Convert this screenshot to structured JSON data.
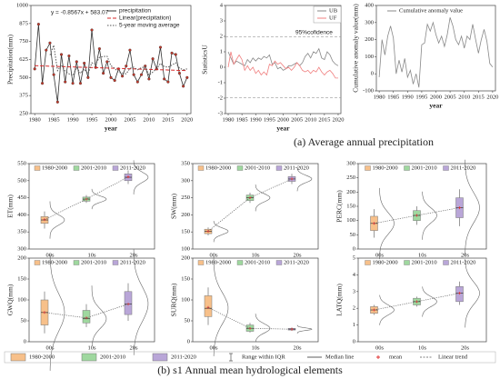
{
  "chart_data": [
    {
      "type": "line",
      "x_label": "year",
      "y_label": "Precipitation(mm)",
      "annotation": "y = -0.8567x + 583.07",
      "legend": "upper right",
      "x": [
        1980,
        1981,
        1982,
        1983,
        1984,
        1985,
        1986,
        1987,
        1988,
        1989,
        1990,
        1991,
        1992,
        1993,
        1994,
        1995,
        1996,
        1997,
        1998,
        1999,
        2000,
        2001,
        2002,
        2003,
        2004,
        2005,
        2006,
        2007,
        2008,
        2009,
        2010,
        2011,
        2012,
        2013,
        2014,
        2015,
        2016,
        2017,
        2018,
        2019,
        2020
      ],
      "xlim": [
        1979,
        2021
      ],
      "xticks": [
        1980,
        1985,
        1990,
        1995,
        2000,
        2005,
        2010,
        2015,
        2020
      ],
      "ylim": [
        250,
        1000
      ],
      "yticks": [
        250,
        375,
        500,
        625,
        750,
        875,
        1000
      ],
      "series": [
        {
          "name": "precipitation",
          "color": "#333333",
          "marker": true,
          "style": "solid",
          "values": [
            560,
            870,
            460,
            690,
            740,
            520,
            330,
            660,
            470,
            650,
            460,
            610,
            460,
            600,
            500,
            830,
            570,
            700,
            530,
            610,
            500,
            480,
            560,
            510,
            580,
            690,
            520,
            470,
            520,
            580,
            490,
            630,
            560,
            710,
            490,
            470,
            670,
            660,
            530,
            440,
            500
          ]
        },
        {
          "name": "Linear(precipitation)",
          "color": "#d62728",
          "style": "dashed",
          "x": [
            1980,
            2020
          ],
          "values": [
            582.2,
            547.9
          ]
        },
        {
          "name": "5-year moving average",
          "color": "#555555",
          "style": "dotted",
          "values": [
            null,
            null,
            null,
            null,
            656,
            724,
            548,
            588,
            544,
            526,
            514,
            570,
            530,
            558,
            526,
            602,
            594,
            640,
            646,
            648,
            582,
            564,
            536,
            532,
            526,
            564,
            572,
            554,
            568,
            576,
            516,
            538,
            560,
            598,
            576,
            572,
            586,
            602,
            566,
            554,
            560
          ]
        }
      ]
    },
    {
      "type": "line",
      "x_label": "year",
      "y_label": "StatisticsU",
      "annotation": "95%cofidence",
      "legend": "upper right",
      "x": [
        1980,
        1981,
        1982,
        1983,
        1984,
        1985,
        1986,
        1987,
        1988,
        1989,
        1990,
        1991,
        1992,
        1993,
        1994,
        1995,
        1996,
        1997,
        1998,
        1999,
        2000,
        2001,
        2002,
        2003,
        2004,
        2005,
        2006,
        2007,
        2008,
        2009,
        2010,
        2011,
        2012,
        2013,
        2014,
        2015,
        2016,
        2017,
        2018,
        2019,
        2020
      ],
      "xlim": [
        1979,
        2021
      ],
      "xticks": [
        1980,
        1985,
        1990,
        1995,
        2000,
        2005,
        2010,
        2015,
        2020
      ],
      "ylim": [
        -3,
        4
      ],
      "yticks": [
        -3,
        -2,
        -1,
        0,
        1,
        2,
        3,
        4
      ],
      "hlines": [
        1.96,
        -1.96
      ],
      "series": [
        {
          "name": "UB",
          "color": "#888888",
          "style": "solid",
          "values": [
            1,
            0.6,
            0.2,
            0.4,
            0.3,
            0.2,
            0.1,
            0.5,
            0.3,
            0.6,
            0.4,
            0.6,
            0.5,
            0.7,
            0.6,
            0.8,
            0.2,
            0.3,
            -0.1,
            0,
            -0.2,
            -0.1,
            0.1,
            0.1,
            0.2,
            0.3,
            0.1,
            0.3,
            0.7,
            0.9,
            0.6,
            1,
            0.9,
            1.2,
            0.6,
            0.5,
            1,
            0.8,
            0.4,
            0.2,
            0.1
          ]
        },
        {
          "name": "UF",
          "color": "#f08080",
          "style": "solid",
          "values": [
            0,
            1,
            0.2,
            0.5,
            0.8,
            0.5,
            -0.2,
            0.1,
            -0.2,
            0,
            -0.4,
            -0.2,
            -0.5,
            -0.3,
            -0.5,
            0.2,
            0.1,
            0.4,
            0.2,
            0.3,
            0.1,
            -0.1,
            0,
            -0.2,
            0,
            0.3,
            0.1,
            -0.2,
            -0.3,
            -0.2,
            -0.4,
            -0.2,
            -0.3,
            0,
            -0.3,
            -0.5,
            -0.3,
            -0.2,
            -0.4,
            -0.7,
            -0.7
          ]
        }
      ]
    },
    {
      "type": "line",
      "x_label": "year",
      "y_label": "Cumulative anomaly value(mm)",
      "legend": "upper right",
      "x": [
        1980,
        1981,
        1982,
        1983,
        1984,
        1985,
        1986,
        1987,
        1988,
        1989,
        1990,
        1991,
        1992,
        1993,
        1994,
        1995,
        1996,
        1997,
        1998,
        1999,
        2000,
        2001,
        2002,
        2003,
        2004,
        2005,
        2006,
        2007,
        2008,
        2009,
        2010,
        2011,
        2012,
        2013,
        2014,
        2015,
        2016,
        2017,
        2018,
        2019,
        2020
      ],
      "xlim": [
        1979,
        2021
      ],
      "xticks": [
        1980,
        1985,
        1990,
        1995,
        2000,
        2005,
        2010,
        2015,
        2020
      ],
      "ylim": [
        -100,
        400
      ],
      "yticks": [
        -100,
        0,
        100,
        200,
        300,
        400
      ],
      "series": [
        {
          "name": "Cumulative anomaly value",
          "color": "#888888",
          "style": "solid",
          "values": [
            -20,
            200,
            110,
            220,
            280,
            210,
            0,
            80,
            10,
            90,
            -20,
            20,
            -60,
            0,
            -80,
            170,
            180,
            290,
            250,
            300,
            230,
            180,
            220,
            160,
            230,
            330,
            280,
            200,
            170,
            220,
            150,
            220,
            200,
            290,
            200,
            120,
            200,
            260,
            190,
            60,
            40
          ]
        }
      ]
    },
    {
      "type": "box",
      "y_label": "ET(mm)",
      "categories": [
        "00s",
        "10s",
        "20s"
      ],
      "ylim": [
        300,
        550
      ],
      "yticks": [
        300,
        350,
        400,
        450,
        500,
        550
      ],
      "series": [
        {
          "name": "1980-2000",
          "color": "#f7c08a",
          "box": {
            "low": 360,
            "q1": 375,
            "median": 385,
            "q3": 395,
            "high": 410,
            "mean": 386
          }
        },
        {
          "name": "2001-2010",
          "color": "#9fd89f",
          "box": {
            "low": 435,
            "q1": 440,
            "median": 446,
            "q3": 452,
            "high": 458,
            "mean": 446
          }
        },
        {
          "name": "2011-2020",
          "color": "#b9a6d8",
          "box": {
            "low": 490,
            "q1": 500,
            "median": 510,
            "q3": 520,
            "high": 530,
            "mean": 511
          }
        }
      ]
    },
    {
      "type": "box",
      "y_label": "SW(mm)",
      "categories": [
        "00s",
        "10s",
        "20s"
      ],
      "ylim": [
        100,
        350
      ],
      "yticks": [
        100,
        150,
        200,
        250,
        300,
        350
      ],
      "series": [
        {
          "name": "1980-2000",
          "color": "#f7c08a",
          "box": {
            "low": 140,
            "q1": 145,
            "median": 152,
            "q3": 158,
            "high": 163,
            "mean": 152
          }
        },
        {
          "name": "2001-2010",
          "color": "#9fd89f",
          "box": {
            "low": 235,
            "q1": 242,
            "median": 250,
            "q3": 258,
            "high": 265,
            "mean": 250
          }
        },
        {
          "name": "2011-2020",
          "color": "#b9a6d8",
          "box": {
            "low": 290,
            "q1": 298,
            "median": 305,
            "q3": 312,
            "high": 320,
            "mean": 305
          }
        }
      ]
    },
    {
      "type": "box",
      "y_label": "PERC(mm)",
      "categories": [
        "00s",
        "10s",
        "20s"
      ],
      "ylim": [
        0,
        300
      ],
      "yticks": [
        0,
        50,
        100,
        150,
        200,
        250,
        300
      ],
      "series": [
        {
          "name": "1980-2000",
          "color": "#f7c08a",
          "box": {
            "low": 40,
            "q1": 65,
            "median": 90,
            "q3": 115,
            "high": 140,
            "mean": 90
          }
        },
        {
          "name": "2001-2010",
          "color": "#9fd89f",
          "box": {
            "low": 85,
            "q1": 100,
            "median": 118,
            "q3": 135,
            "high": 150,
            "mean": 118
          }
        },
        {
          "name": "2011-2020",
          "color": "#b9a6d8",
          "box": {
            "low": 80,
            "q1": 110,
            "median": 145,
            "q3": 180,
            "high": 210,
            "mean": 145
          }
        }
      ]
    },
    {
      "type": "box",
      "y_label": "GWQ(mm)",
      "categories": [
        "00s",
        "10s",
        "20s"
      ],
      "ylim": [
        0,
        200
      ],
      "yticks": [
        0,
        50,
        100,
        150,
        200
      ],
      "series": [
        {
          "name": "1980-2000",
          "color": "#f7c08a",
          "box": {
            "low": 20,
            "q1": 40,
            "median": 70,
            "q3": 100,
            "high": 120,
            "mean": 70
          }
        },
        {
          "name": "2001-2010",
          "color": "#9fd89f",
          "box": {
            "low": 35,
            "q1": 45,
            "median": 55,
            "q3": 75,
            "high": 90,
            "mean": 57
          }
        },
        {
          "name": "2011-2020",
          "color": "#b9a6d8",
          "box": {
            "low": 50,
            "q1": 65,
            "median": 90,
            "q3": 120,
            "high": 140,
            "mean": 90
          }
        }
      ]
    },
    {
      "type": "box",
      "y_label": "SURQ(mm)",
      "categories": [
        "00s",
        "10s",
        "20s"
      ],
      "ylim": [
        0,
        200
      ],
      "yticks": [
        0,
        50,
        100,
        150,
        200
      ],
      "series": [
        {
          "name": "1980-2000",
          "color": "#f7c08a",
          "box": {
            "low": 40,
            "q1": 60,
            "median": 80,
            "q3": 110,
            "high": 130,
            "mean": 82
          }
        },
        {
          "name": "2001-2010",
          "color": "#9fd89f",
          "box": {
            "low": 22,
            "q1": 25,
            "median": 32,
            "q3": 40,
            "high": 45,
            "mean": 32
          }
        },
        {
          "name": "2011-2020",
          "color": "#b9a6d8",
          "box": {
            "low": 26,
            "q1": 28,
            "median": 30,
            "q3": 32,
            "high": 34,
            "mean": 30
          }
        }
      ]
    },
    {
      "type": "box",
      "y_label": "LATQ(mm)",
      "categories": [
        "00s",
        "10s",
        "20s"
      ],
      "ylim": [
        0,
        5
      ],
      "yticks": [
        0,
        1,
        2,
        3,
        4,
        5
      ],
      "series": [
        {
          "name": "1980-2000",
          "color": "#f7c08a",
          "box": {
            "low": 1.6,
            "q1": 1.7,
            "median": 1.9,
            "q3": 2.1,
            "high": 2.2,
            "mean": 1.9
          }
        },
        {
          "name": "2001-2010",
          "color": "#9fd89f",
          "box": {
            "low": 2.1,
            "q1": 2.2,
            "median": 2.4,
            "q3": 2.6,
            "high": 2.7,
            "mean": 2.4
          }
        },
        {
          "name": "2011-2020",
          "color": "#b9a6d8",
          "box": {
            "low": 2.2,
            "q1": 2.4,
            "median": 2.9,
            "q3": 3.3,
            "high": 3.6,
            "mean": 2.9
          }
        }
      ]
    }
  ],
  "legend": {
    "items": [
      {
        "name": "1980-2000",
        "color": "#f7c08a",
        "symbol": "box"
      },
      {
        "name": "2001-2010",
        "color": "#9fd89f",
        "symbol": "box"
      },
      {
        "name": "2011-2020",
        "color": "#b9a6d8",
        "symbol": "box"
      },
      {
        "name": "Range within IQR",
        "symbol": "whisker"
      },
      {
        "name": "Median line",
        "symbol": "median"
      },
      {
        "name": "mean",
        "color": "#e03030",
        "symbol": "mean"
      },
      {
        "name": "Linear trend",
        "symbol": "trend"
      }
    ]
  },
  "captions": [
    "(a)  Average annual precipitation",
    "(b) s1 Annual mean hydrological elements"
  ]
}
